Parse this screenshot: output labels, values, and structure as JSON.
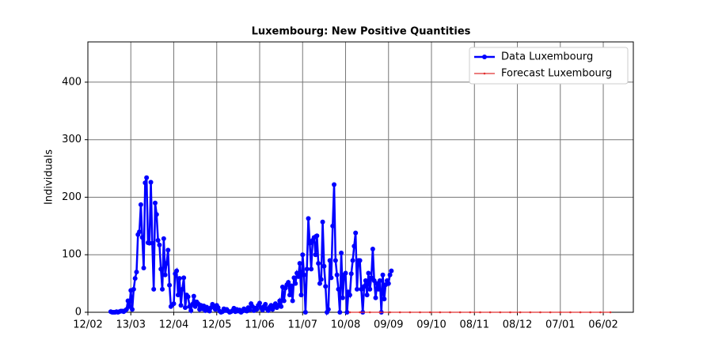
{
  "chart_data": {
    "type": "line",
    "title": "Luxembourg: New Positive Quantities",
    "y_label": "Individuals",
    "xlim": [
      0,
      381
    ],
    "ylim": [
      0,
      470
    ],
    "grid": true,
    "legend": "upper right",
    "xticks": [
      {
        "value": 0,
        "label": "12/02"
      },
      {
        "value": 30,
        "label": "13/03"
      },
      {
        "value": 60,
        "label": "12/04"
      },
      {
        "value": 90,
        "label": "12/05"
      },
      {
        "value": 120,
        "label": "11/06"
      },
      {
        "value": 150,
        "label": "11/07"
      },
      {
        "value": 180,
        "label": "10/08"
      },
      {
        "value": 210,
        "label": "09/09"
      },
      {
        "value": 240,
        "label": "09/10"
      },
      {
        "value": 270,
        "label": "08/11"
      },
      {
        "value": 300,
        "label": "08/12"
      },
      {
        "value": 330,
        "label": "07/01"
      },
      {
        "value": 360,
        "label": "06/02"
      }
    ],
    "yticks": [
      0,
      100,
      200,
      300,
      400
    ],
    "series": [
      {
        "name": "Data Luxembourg",
        "color": "#0000ff",
        "x": [
          16,
          17,
          18,
          19,
          20,
          21,
          22,
          23,
          24,
          25,
          26,
          27,
          28,
          29,
          30,
          31,
          32,
          33,
          34,
          35,
          36,
          37,
          38,
          39,
          40,
          41,
          42,
          43,
          44,
          45,
          46,
          47,
          48,
          49,
          50,
          51,
          52,
          53,
          54,
          55,
          56,
          57,
          58,
          59,
          60,
          61,
          62,
          63,
          64,
          65,
          66,
          67,
          68,
          69,
          70,
          71,
          72,
          73,
          74,
          75,
          76,
          77,
          78,
          79,
          80,
          81,
          82,
          83,
          84,
          85,
          86,
          87,
          88,
          89,
          90,
          91,
          92,
          93,
          94,
          95,
          96,
          97,
          98,
          99,
          100,
          101,
          102,
          103,
          104,
          105,
          106,
          107,
          108,
          109,
          110,
          111,
          112,
          113,
          114,
          115,
          116,
          117,
          118,
          119,
          120,
          121,
          122,
          123,
          124,
          125,
          126,
          127,
          128,
          129,
          130,
          131,
          132,
          133,
          134,
          135,
          136,
          137,
          138,
          139,
          140,
          141,
          142,
          143,
          144,
          145,
          146,
          147,
          148,
          149,
          150,
          151,
          152,
          153,
          154,
          155,
          156,
          157,
          158,
          159,
          160,
          161,
          162,
          163,
          164,
          165,
          166,
          167,
          168,
          169,
          170,
          171,
          172,
          173,
          174,
          175,
          176,
          177,
          178,
          179,
          180,
          181,
          182,
          183,
          184,
          185,
          186,
          187,
          188,
          189,
          190,
          191,
          192,
          193,
          194,
          195,
          196,
          197,
          198,
          199,
          200,
          201,
          202,
          203,
          204,
          205,
          206,
          207,
          208,
          209,
          210,
          211,
          212
        ],
        "values": [
          1,
          0,
          0,
          0,
          1,
          0,
          1,
          2,
          2,
          1,
          3,
          5,
          20,
          10,
          38,
          5,
          40,
          59,
          70,
          135,
          140,
          187,
          130,
          77,
          225,
          234,
          121,
          120,
          226,
          120,
          40,
          190,
          170,
          125,
          117,
          75,
          40,
          128,
          65,
          85,
          108,
          47,
          10,
          13,
          15,
          67,
          72,
          30,
          59,
          12,
          40,
          60,
          8,
          30,
          27,
          10,
          3,
          14,
          28,
          10,
          18,
          15,
          5,
          12,
          6,
          11,
          3,
          9,
          5,
          2,
          8,
          14,
          10,
          5,
          12,
          8,
          2,
          0,
          1,
          6,
          3,
          5,
          2,
          0,
          1,
          3,
          7,
          1,
          5,
          2,
          4,
          0,
          2,
          6,
          3,
          2,
          8,
          4,
          15,
          10,
          3,
          7,
          5,
          12,
          16,
          8,
          4,
          10,
          14,
          6,
          3,
          9,
          12,
          5,
          10,
          15,
          8,
          12,
          20,
          10,
          44,
          20,
          42,
          48,
          52,
          30,
          46,
          20,
          60,
          50,
          68,
          62,
          85,
          30,
          100,
          65,
          0,
          75,
          163,
          120,
          75,
          125,
          130,
          100,
          133,
          85,
          50,
          57,
          157,
          80,
          45,
          0,
          5,
          90,
          60,
          150,
          222,
          90,
          65,
          40,
          0,
          103,
          25,
          65,
          68,
          0,
          35,
          30,
          67,
          90,
          115,
          138,
          40,
          90,
          90,
          40,
          0,
          45,
          55,
          30,
          68,
          40,
          60,
          110,
          55,
          25,
          50,
          40,
          55,
          0,
          65,
          23,
          48,
          55,
          50,
          65,
          72
        ]
      },
      {
        "name": "Forecast Luxembourg",
        "color": "#e03030",
        "x": [
          183,
          190,
          197,
          204,
          211,
          218,
          225,
          232,
          239,
          246,
          253,
          260,
          267,
          274,
          281,
          288,
          295,
          302,
          309,
          316,
          323,
          330,
          337,
          344,
          351,
          358,
          365
        ],
        "values": [
          0,
          0,
          0,
          0,
          0,
          0,
          0,
          0,
          0,
          0,
          0,
          0,
          0,
          0,
          0,
          0,
          0,
          0,
          0,
          0,
          0,
          0,
          0,
          0,
          0,
          0,
          0
        ]
      }
    ]
  }
}
